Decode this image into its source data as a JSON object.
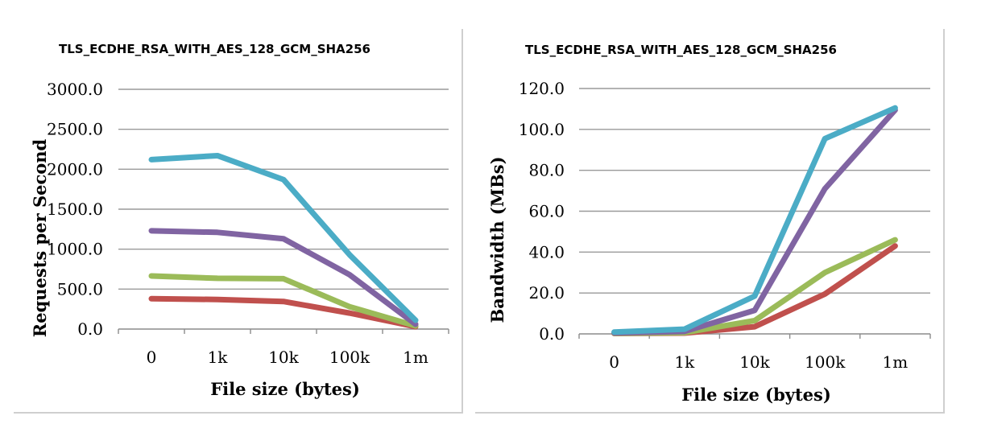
{
  "charts": [
    {
      "title": "TLS_ECDHE_RSA_WITH_AES_128_GCM_SHA256",
      "xlabel": "File size (bytes)",
      "ylabel": "Requests per Second",
      "ytick_labels": [
        "0.0",
        "500.0",
        "1000.0",
        "1500.0",
        "2000.0",
        "2500.0",
        "3000.0"
      ],
      "xtick_labels": [
        "0",
        "1k",
        "10k",
        "100k",
        "1m"
      ]
    },
    {
      "title": "TLS_ECDHE_RSA_WITH_AES_128_GCM_SHA256",
      "xlabel": "File size (bytes)",
      "ylabel": "Bandwidth (MBs)",
      "ytick_labels": [
        "0.0",
        "20.0",
        "40.0",
        "60.0",
        "80.0",
        "100.0",
        "120.0"
      ],
      "xtick_labels": [
        "0",
        "1k",
        "10k",
        "100k",
        "1m"
      ]
    }
  ],
  "chart_data": [
    {
      "type": "line",
      "title": "TLS_ECDHE_RSA_WITH_AES_128_GCM_SHA256",
      "xlabel": "File size (bytes)",
      "ylabel": "Requests per Second",
      "categories": [
        "0",
        "1k",
        "10k",
        "100k",
        "1m"
      ],
      "ylim": [
        0,
        3000
      ],
      "grid": true,
      "series": [
        {
          "color": "#4bacc6",
          "values": [
            2120,
            2170,
            1870,
            930,
            110
          ]
        },
        {
          "color": "#8064a2",
          "values": [
            1230,
            1210,
            1130,
            680,
            60
          ]
        },
        {
          "color": "#9bbb59",
          "values": [
            665,
            635,
            630,
            280,
            40
          ]
        },
        {
          "color": "#c0504d",
          "values": [
            380,
            370,
            345,
            200,
            30
          ]
        }
      ]
    },
    {
      "type": "line",
      "title": "TLS_ECDHE_RSA_WITH_AES_128_GCM_SHA256",
      "xlabel": "File size (bytes)",
      "ylabel": "Bandwidth (MBs)",
      "categories": [
        "0",
        "1k",
        "10k",
        "100k",
        "1m"
      ],
      "ylim": [
        0,
        120
      ],
      "grid": true,
      "series": [
        {
          "color": "#4bacc6",
          "values": [
            0.9,
            2.3,
            18.5,
            95.5,
            110.5
          ]
        },
        {
          "color": "#8064a2",
          "values": [
            0.5,
            1.2,
            11.5,
            71.0,
            109.5
          ]
        },
        {
          "color": "#9bbb59",
          "values": [
            0.3,
            0.6,
            6.5,
            30.0,
            46.0
          ]
        },
        {
          "color": "#c0504d",
          "values": [
            0.2,
            0.4,
            3.5,
            19.5,
            43.0
          ]
        }
      ]
    }
  ]
}
